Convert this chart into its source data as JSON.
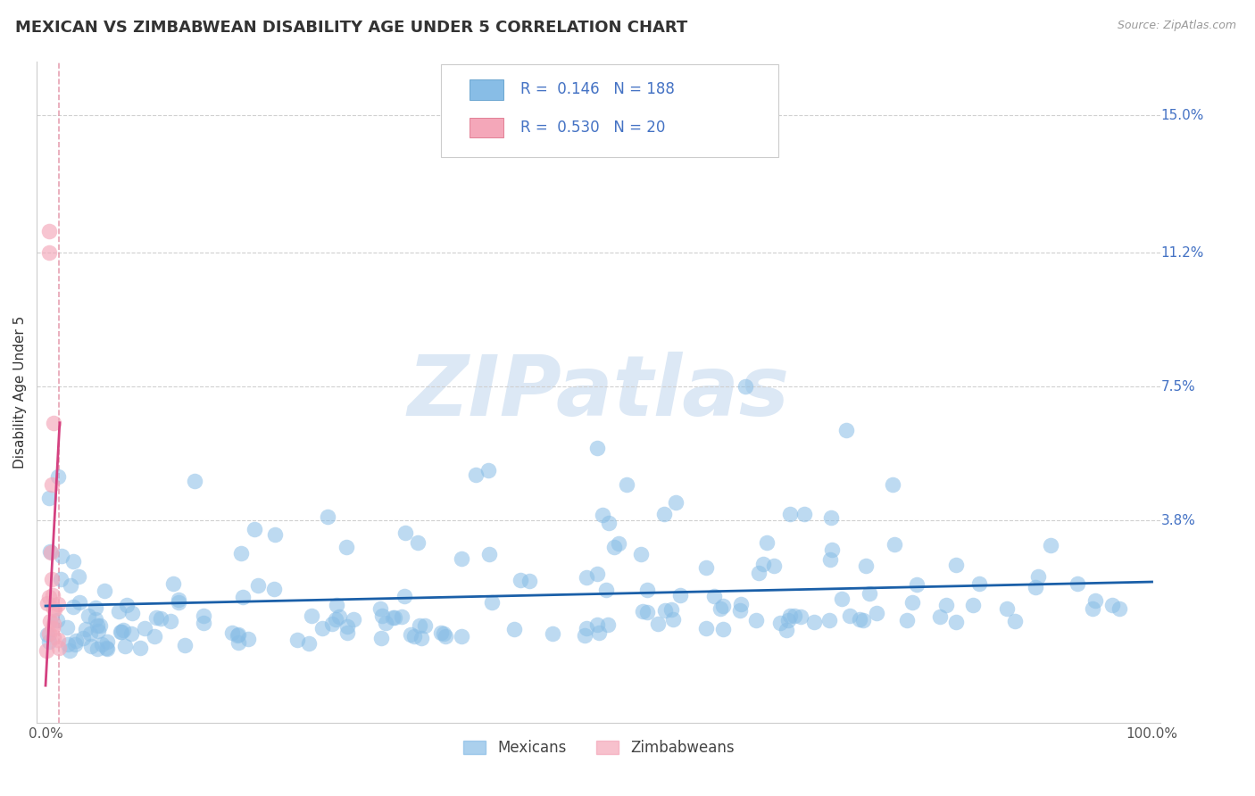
{
  "title": "MEXICAN VS ZIMBABWEAN DISABILITY AGE UNDER 5 CORRELATION CHART",
  "source": "Source: ZipAtlas.com",
  "ylabel": "Disability Age Under 5",
  "xlim": [
    -0.008,
    1.008
  ],
  "ylim": [
    -0.018,
    0.165
  ],
  "ytick_vals": [
    0.038,
    0.075,
    0.112,
    0.15
  ],
  "ytick_labels": [
    "3.8%",
    "7.5%",
    "11.2%",
    "15.0%"
  ],
  "xtick_vals": [
    0.0,
    1.0
  ],
  "xtick_labels": [
    "0.0%",
    "100.0%"
  ],
  "mexican_color": "#88bde6",
  "mexican_edge_color": "#4a90c4",
  "zimbabwean_color": "#f4a7b9",
  "zimbabwean_edge_color": "#d9607a",
  "mexican_line_color": "#1a5fa8",
  "zimbabwean_line_color": "#d44080",
  "zimbabwean_dash_color": "#e08aa0",
  "mexican_R": 0.146,
  "mexican_N": 188,
  "zimbabwean_R": 0.53,
  "zimbabwean_N": 20,
  "background_color": "#ffffff",
  "grid_color": "#d0d0d0",
  "legend_edge_color": "#cccccc",
  "watermark_color": "#dce8f5",
  "label_color": "#4472c4",
  "text_color": "#333333",
  "source_color": "#999999",
  "title_fontsize": 13,
  "axis_fontsize": 11,
  "tick_fontsize": 11,
  "ylabel_fontsize": 11,
  "watermark_fontsize": 68
}
